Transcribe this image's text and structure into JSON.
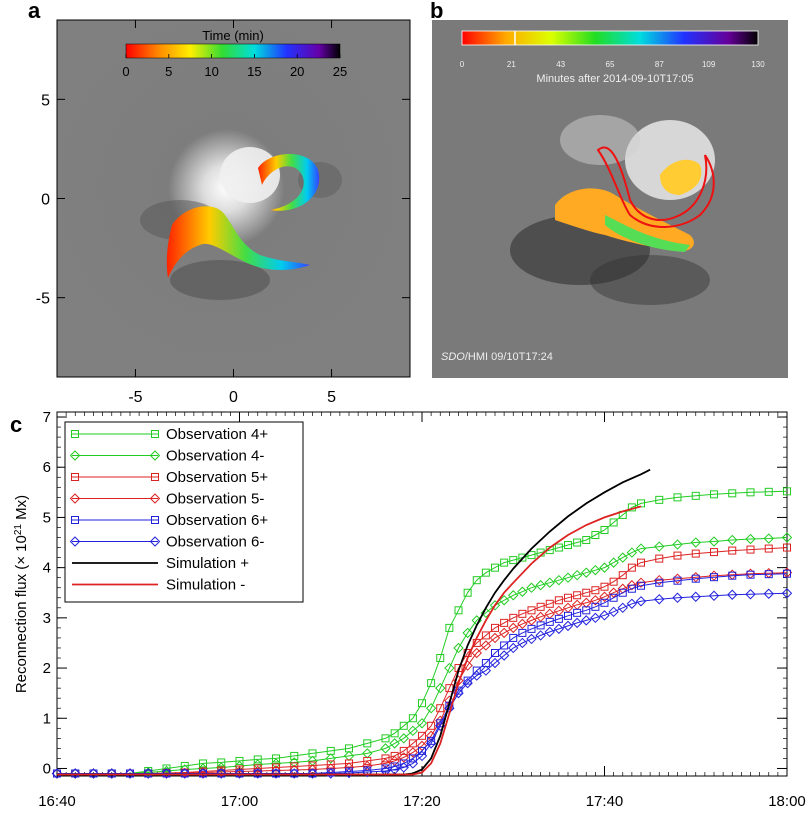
{
  "panels": {
    "a": {
      "letter": "a",
      "colorbar_title": "Time (min)",
      "colorbar_ticks": [
        "0",
        "5",
        "10",
        "15",
        "20",
        "25"
      ],
      "xticks": [
        "-5",
        "0",
        "5"
      ],
      "yticks": [
        "5",
        "0",
        "-5"
      ]
    },
    "b": {
      "letter": "b",
      "colorbar_ticks": [
        "0",
        "21",
        "43",
        "65",
        "87",
        "109",
        "130"
      ],
      "colorbar_caption": "Minutes after 2014-09-10T17:05",
      "instrument_italic": "SDO",
      "instrument_rest": "/HMI  09/10T17:24"
    },
    "c": {
      "letter": "c"
    }
  },
  "chart_data": {
    "type": "line",
    "ylabel_main": "Reconnection flux (× 10",
    "ylabel_sup": "21",
    "ylabel_unit": " Mx)",
    "xlabel": "",
    "x_tick_labels": [
      "16:40",
      "17:00",
      "17:20",
      "17:40",
      "18:00"
    ],
    "x_tick_minutes": [
      0,
      20,
      40,
      60,
      80
    ],
    "x_range_minutes": [
      0,
      80
    ],
    "y_tick_labels": [
      "0",
      "1",
      "2",
      "3",
      "4",
      "5",
      "6",
      "7"
    ],
    "ylim": [
      -0.15,
      7.1
    ],
    "grid": false,
    "legend_position": "top-left",
    "series": [
      {
        "name": "Observation 4+",
        "color": "#22cc22",
        "marker": "square",
        "x": [
          0,
          2,
          4,
          6,
          8,
          10,
          12,
          14,
          16,
          18,
          20,
          22,
          24,
          26,
          28,
          30,
          32,
          34,
          36,
          37,
          38,
          39,
          40,
          41,
          42,
          43,
          44,
          45,
          46,
          47,
          48,
          49,
          50,
          51,
          52,
          53,
          54,
          55,
          56,
          57,
          58,
          59,
          60,
          61,
          62,
          63,
          64,
          66,
          68,
          70,
          72,
          74,
          76,
          78,
          80
        ],
        "y": [
          -0.1,
          -0.1,
          -0.1,
          -0.1,
          -0.1,
          -0.05,
          0.0,
          0.05,
          0.1,
          0.12,
          0.15,
          0.18,
          0.2,
          0.25,
          0.3,
          0.35,
          0.4,
          0.5,
          0.6,
          0.7,
          0.85,
          1.0,
          1.3,
          1.7,
          2.2,
          2.8,
          3.15,
          3.5,
          3.75,
          3.9,
          4.0,
          4.1,
          4.15,
          4.2,
          4.25,
          4.3,
          4.35,
          4.4,
          4.45,
          4.5,
          4.55,
          4.65,
          4.75,
          4.9,
          5.05,
          5.2,
          5.28,
          5.35,
          5.4,
          5.43,
          5.46,
          5.48,
          5.5,
          5.51,
          5.52
        ]
      },
      {
        "name": "Observation 4-",
        "color": "#22cc22",
        "marker": "diamond",
        "x": [
          0,
          2,
          4,
          6,
          8,
          10,
          12,
          14,
          16,
          18,
          20,
          22,
          24,
          26,
          28,
          30,
          32,
          34,
          36,
          37,
          38,
          39,
          40,
          41,
          42,
          43,
          44,
          45,
          46,
          47,
          48,
          49,
          50,
          51,
          52,
          53,
          54,
          55,
          56,
          57,
          58,
          59,
          60,
          61,
          62,
          63,
          64,
          66,
          68,
          70,
          72,
          74,
          76,
          78,
          80
        ],
        "y": [
          -0.1,
          -0.1,
          -0.1,
          -0.1,
          -0.1,
          -0.08,
          -0.05,
          -0.02,
          0.0,
          0.02,
          0.05,
          0.08,
          0.1,
          0.12,
          0.15,
          0.2,
          0.25,
          0.3,
          0.4,
          0.5,
          0.6,
          0.75,
          0.9,
          1.2,
          1.6,
          2.0,
          2.4,
          2.7,
          2.95,
          3.1,
          3.25,
          3.35,
          3.45,
          3.52,
          3.6,
          3.65,
          3.7,
          3.75,
          3.8,
          3.85,
          3.9,
          3.95,
          4.0,
          4.1,
          4.2,
          4.3,
          4.38,
          4.42,
          4.46,
          4.5,
          4.52,
          4.55,
          4.57,
          4.58,
          4.6
        ]
      },
      {
        "name": "Observation 5+",
        "color": "#dd2222",
        "marker": "square",
        "x": [
          0,
          2,
          4,
          6,
          8,
          10,
          12,
          14,
          16,
          18,
          20,
          22,
          24,
          26,
          28,
          30,
          32,
          34,
          36,
          37,
          38,
          39,
          40,
          41,
          42,
          43,
          44,
          45,
          46,
          47,
          48,
          49,
          50,
          51,
          52,
          53,
          54,
          55,
          56,
          57,
          58,
          59,
          60,
          61,
          62,
          63,
          64,
          66,
          68,
          70,
          72,
          74,
          76,
          78,
          80
        ],
        "y": [
          -0.1,
          -0.1,
          -0.1,
          -0.1,
          -0.1,
          -0.1,
          -0.09,
          -0.08,
          -0.06,
          -0.04,
          -0.02,
          0.0,
          0.02,
          0.04,
          0.06,
          0.08,
          0.1,
          0.15,
          0.2,
          0.25,
          0.35,
          0.5,
          0.65,
          0.85,
          1.2,
          1.6,
          2.0,
          2.3,
          2.5,
          2.65,
          2.8,
          2.9,
          3.0,
          3.08,
          3.15,
          3.22,
          3.28,
          3.35,
          3.4,
          3.45,
          3.5,
          3.55,
          3.62,
          3.72,
          3.85,
          4.0,
          4.1,
          4.18,
          4.24,
          4.28,
          4.31,
          4.34,
          4.36,
          4.38,
          4.4
        ]
      },
      {
        "name": "Observation 5-",
        "color": "#dd2222",
        "marker": "diamond",
        "x": [
          0,
          2,
          4,
          6,
          8,
          10,
          12,
          14,
          16,
          18,
          20,
          22,
          24,
          26,
          28,
          30,
          32,
          34,
          36,
          37,
          38,
          39,
          40,
          41,
          42,
          43,
          44,
          45,
          46,
          47,
          48,
          49,
          50,
          51,
          52,
          53,
          54,
          55,
          56,
          57,
          58,
          59,
          60,
          61,
          62,
          63,
          64,
          66,
          68,
          70,
          72,
          74,
          76,
          78,
          80
        ],
        "y": [
          -0.1,
          -0.1,
          -0.1,
          -0.1,
          -0.1,
          -0.1,
          -0.1,
          -0.09,
          -0.08,
          -0.07,
          -0.06,
          -0.05,
          -0.04,
          -0.03,
          -0.02,
          0.0,
          0.02,
          0.05,
          0.1,
          0.15,
          0.22,
          0.32,
          0.45,
          0.65,
          0.95,
          1.35,
          1.75,
          2.05,
          2.3,
          2.45,
          2.6,
          2.7,
          2.8,
          2.88,
          2.95,
          3.02,
          3.08,
          3.14,
          3.2,
          3.26,
          3.3,
          3.35,
          3.42,
          3.5,
          3.58,
          3.65,
          3.7,
          3.75,
          3.78,
          3.81,
          3.84,
          3.86,
          3.88,
          3.89,
          3.9
        ]
      },
      {
        "name": "Observation 6+",
        "color": "#2222dd",
        "marker": "square",
        "x": [
          0,
          2,
          4,
          6,
          8,
          10,
          12,
          14,
          16,
          18,
          20,
          22,
          24,
          26,
          28,
          30,
          32,
          34,
          36,
          37,
          38,
          39,
          40,
          41,
          42,
          43,
          44,
          45,
          46,
          47,
          48,
          49,
          50,
          51,
          52,
          53,
          54,
          55,
          56,
          57,
          58,
          59,
          60,
          61,
          62,
          63,
          64,
          66,
          68,
          70,
          72,
          74,
          76,
          78,
          80
        ],
        "y": [
          -0.1,
          -0.1,
          -0.1,
          -0.1,
          -0.1,
          -0.1,
          -0.1,
          -0.1,
          -0.1,
          -0.1,
          -0.1,
          -0.1,
          -0.1,
          -0.1,
          -0.1,
          -0.08,
          -0.06,
          -0.04,
          0.0,
          0.04,
          0.1,
          0.2,
          0.35,
          0.55,
          0.9,
          1.25,
          1.55,
          1.75,
          1.95,
          2.1,
          2.3,
          2.45,
          2.6,
          2.7,
          2.78,
          2.85,
          2.92,
          2.98,
          3.04,
          3.1,
          3.15,
          3.22,
          3.3,
          3.4,
          3.5,
          3.58,
          3.64,
          3.7,
          3.74,
          3.78,
          3.81,
          3.84,
          3.86,
          3.87,
          3.88
        ]
      },
      {
        "name": "Observation 6-",
        "color": "#2222dd",
        "marker": "diamond",
        "x": [
          0,
          2,
          4,
          6,
          8,
          10,
          12,
          14,
          16,
          18,
          20,
          22,
          24,
          26,
          28,
          30,
          32,
          34,
          36,
          37,
          38,
          39,
          40,
          41,
          42,
          43,
          44,
          45,
          46,
          47,
          48,
          49,
          50,
          51,
          52,
          53,
          54,
          55,
          56,
          57,
          58,
          59,
          60,
          61,
          62,
          63,
          64,
          66,
          68,
          70,
          72,
          74,
          76,
          78,
          80
        ],
        "y": [
          -0.1,
          -0.1,
          -0.1,
          -0.1,
          -0.1,
          -0.1,
          -0.1,
          -0.1,
          -0.1,
          -0.1,
          -0.1,
          -0.1,
          -0.1,
          -0.1,
          -0.1,
          -0.1,
          -0.09,
          -0.07,
          -0.05,
          -0.02,
          0.02,
          0.1,
          0.25,
          0.5,
          0.85,
          1.2,
          1.5,
          1.7,
          1.85,
          1.95,
          2.1,
          2.25,
          2.4,
          2.5,
          2.58,
          2.65,
          2.72,
          2.78,
          2.84,
          2.9,
          2.95,
          3.0,
          3.05,
          3.12,
          3.2,
          3.28,
          3.33,
          3.37,
          3.4,
          3.42,
          3.44,
          3.46,
          3.47,
          3.48,
          3.49
        ]
      },
      {
        "name": "Simulation +",
        "color": "#000000",
        "marker": "none",
        "x": [
          0,
          10,
          20,
          30,
          38,
          39,
          40,
          41,
          42,
          43,
          44,
          45,
          46,
          47,
          48,
          49,
          50,
          52,
          54,
          56,
          58,
          60,
          62,
          64,
          65
        ],
        "y": [
          -0.12,
          -0.12,
          -0.12,
          -0.12,
          -0.12,
          -0.1,
          -0.02,
          0.2,
          0.65,
          1.3,
          1.95,
          2.45,
          2.85,
          3.2,
          3.5,
          3.75,
          3.98,
          4.38,
          4.72,
          5.02,
          5.28,
          5.5,
          5.7,
          5.86,
          5.95
        ]
      },
      {
        "name": "Simulation -",
        "color": "#dd2222",
        "marker": "none",
        "x": [
          0,
          10,
          20,
          30,
          38,
          39,
          40,
          41,
          42,
          43,
          44,
          45,
          46,
          47,
          48,
          49,
          50,
          52,
          54,
          56,
          58,
          60,
          62,
          64
        ],
        "y": [
          -0.12,
          -0.12,
          -0.12,
          -0.12,
          -0.12,
          -0.12,
          -0.08,
          0.1,
          0.5,
          1.1,
          1.7,
          2.2,
          2.6,
          2.95,
          3.25,
          3.5,
          3.7,
          4.08,
          4.4,
          4.65,
          4.85,
          5.0,
          5.12,
          5.22
        ]
      }
    ]
  }
}
